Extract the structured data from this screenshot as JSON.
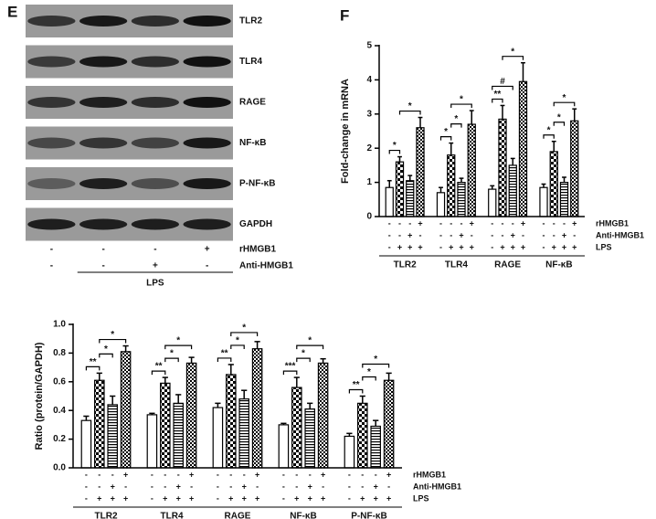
{
  "blot": {
    "panel_label": "E",
    "bands": [
      "TLR2",
      "TLR4",
      "RAGE",
      "NF-κB",
      "P-NF-κB",
      "GAPDH"
    ],
    "conditions": [
      {
        "label": "rHMGB1",
        "signs": [
          "-",
          "-",
          "-",
          "+"
        ]
      },
      {
        "label": "Anti-HMGB1",
        "signs": [
          "-",
          "-",
          "+",
          "-"
        ]
      }
    ],
    "group_label": "LPS"
  },
  "chart_data": [
    {
      "type": "bar",
      "panel_label": "F",
      "ylabel": "Fold-change in mRNA",
      "categories": [
        "TLR2",
        "TLR4",
        "RAGE",
        "NF-κB"
      ],
      "series": [
        {
          "pattern": "none",
          "color": "#ffffff",
          "values": [
            0.85,
            0.7,
            0.8,
            0.85
          ],
          "errors": [
            0.2,
            0.15,
            0.1,
            0.1
          ]
        },
        {
          "pattern": "checker",
          "color": "#000000",
          "values": [
            1.6,
            1.8,
            2.85,
            1.9
          ],
          "errors": [
            0.15,
            0.35,
            0.4,
            0.3
          ]
        },
        {
          "pattern": "hstripe",
          "color": "#000000",
          "values": [
            1.05,
            1.0,
            1.5,
            1.0
          ],
          "errors": [
            0.15,
            0.12,
            0.2,
            0.15
          ]
        },
        {
          "pattern": "dense-checker",
          "color": "#000000",
          "values": [
            2.6,
            2.7,
            3.95,
            2.8
          ],
          "errors": [
            0.3,
            0.4,
            0.55,
            0.35
          ]
        }
      ],
      "ylim": [
        0,
        5
      ],
      "yticks": [
        0,
        1,
        2,
        3,
        4,
        5
      ],
      "conditions": [
        {
          "label": "rHMGB1",
          "signs": [
            "-",
            "-",
            "-",
            "+"
          ]
        },
        {
          "label": "Anti-HMGB1",
          "signs": [
            "-",
            "-",
            "+",
            "-"
          ]
        },
        {
          "label": "LPS",
          "signs": [
            "-",
            "+",
            "+",
            "+"
          ]
        }
      ],
      "brackets": [
        {
          "category": 0,
          "bars": [
            0,
            1
          ],
          "label": "*"
        },
        {
          "category": 0,
          "bars": [
            1,
            3
          ],
          "label": "*"
        },
        {
          "category": 1,
          "bars": [
            0,
            1
          ],
          "label": "*"
        },
        {
          "category": 1,
          "bars": [
            1,
            2
          ],
          "label": "*"
        },
        {
          "category": 1,
          "bars": [
            1,
            3
          ],
          "label": "*"
        },
        {
          "category": 2,
          "bars": [
            0,
            1
          ],
          "label": "**"
        },
        {
          "category": 2,
          "bars": [
            0,
            2
          ],
          "label": "#"
        },
        {
          "category": 2,
          "bars": [
            1,
            3
          ],
          "label": "*"
        },
        {
          "category": 3,
          "bars": [
            0,
            1
          ],
          "label": "*"
        },
        {
          "category": 3,
          "bars": [
            1,
            2
          ],
          "label": "*"
        },
        {
          "category": 3,
          "bars": [
            1,
            3
          ],
          "label": "*"
        }
      ]
    },
    {
      "type": "bar",
      "ylabel": "Ratio (protein/GAPDH)",
      "categories": [
        "TLR2",
        "TLR4",
        "RAGE",
        "NF-κB",
        "P-NF-κB"
      ],
      "series": [
        {
          "pattern": "none",
          "color": "#ffffff",
          "values": [
            0.33,
            0.37,
            0.42,
            0.3,
            0.22
          ],
          "errors": [
            0.03,
            0.01,
            0.03,
            0.01,
            0.02
          ]
        },
        {
          "pattern": "checker",
          "color": "#000000",
          "values": [
            0.61,
            0.59,
            0.65,
            0.56,
            0.45
          ],
          "errors": [
            0.05,
            0.04,
            0.07,
            0.07,
            0.05
          ]
        },
        {
          "pattern": "hstripe",
          "color": "#000000",
          "values": [
            0.44,
            0.45,
            0.48,
            0.41,
            0.29
          ],
          "errors": [
            0.06,
            0.06,
            0.06,
            0.04,
            0.04
          ]
        },
        {
          "pattern": "dense-checker",
          "color": "#000000",
          "values": [
            0.81,
            0.73,
            0.83,
            0.73,
            0.61
          ],
          "errors": [
            0.04,
            0.04,
            0.05,
            0.03,
            0.05
          ]
        }
      ],
      "ylim": [
        0,
        1
      ],
      "yticks": [
        {
          "value": 0,
          "label": "0.0"
        },
        0.2,
        0.4,
        0.6,
        0.8,
        {
          "value": 1,
          "label": "1.0"
        }
      ],
      "conditions": [
        {
          "label": "rHMGB1",
          "signs": [
            "-",
            "-",
            "-",
            "+"
          ]
        },
        {
          "label": "Anti-HMGB1",
          "signs": [
            "-",
            "-",
            "+",
            "-"
          ]
        },
        {
          "label": "LPS",
          "signs": [
            "-",
            "+",
            "+",
            "+"
          ]
        }
      ],
      "brackets": [
        {
          "category": 0,
          "bars": [
            0,
            1
          ],
          "label": "**"
        },
        {
          "category": 0,
          "bars": [
            1,
            2
          ],
          "label": "*"
        },
        {
          "category": 0,
          "bars": [
            1,
            3
          ],
          "label": "*"
        },
        {
          "category": 1,
          "bars": [
            0,
            1
          ],
          "label": "**"
        },
        {
          "category": 1,
          "bars": [
            1,
            2
          ],
          "label": "*"
        },
        {
          "category": 1,
          "bars": [
            1,
            3
          ],
          "label": "*"
        },
        {
          "category": 2,
          "bars": [
            0,
            1
          ],
          "label": "**"
        },
        {
          "category": 2,
          "bars": [
            1,
            2
          ],
          "label": "*"
        },
        {
          "category": 2,
          "bars": [
            1,
            3
          ],
          "label": "*"
        },
        {
          "category": 3,
          "bars": [
            0,
            1
          ],
          "label": "***"
        },
        {
          "category": 3,
          "bars": [
            1,
            2
          ],
          "label": "*"
        },
        {
          "category": 3,
          "bars": [
            1,
            3
          ],
          "label": "*"
        },
        {
          "category": 4,
          "bars": [
            0,
            1
          ],
          "label": "**"
        },
        {
          "category": 4,
          "bars": [
            1,
            2
          ],
          "label": "*"
        },
        {
          "category": 4,
          "bars": [
            1,
            3
          ],
          "label": "*"
        }
      ]
    }
  ]
}
